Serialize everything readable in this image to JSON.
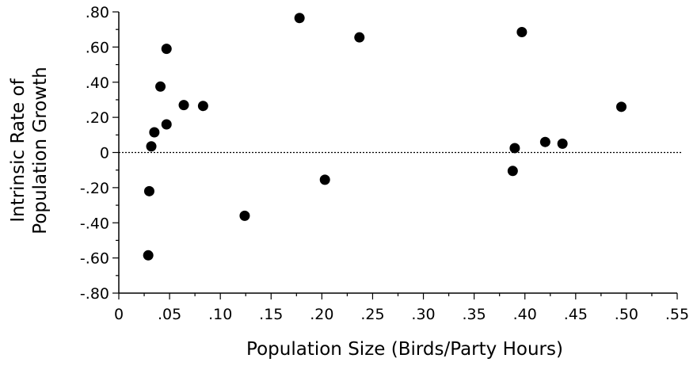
{
  "chart_data": {
    "type": "scatter",
    "title": "",
    "xlabel": "Population Size (Birds/Party Hours)",
    "ylabel_lines": [
      "Intrinsic Rate of",
      "Population Growth"
    ],
    "xlim": [
      0,
      0.55
    ],
    "ylim": [
      -0.8,
      0.8
    ],
    "x_ticks": [
      0,
      0.05,
      0.1,
      0.15,
      0.2,
      0.25,
      0.3,
      0.35,
      0.4,
      0.45,
      0.5,
      0.55
    ],
    "x_tick_labels": [
      "0",
      ".05",
      ".10",
      ".15",
      ".20",
      ".25",
      ".30",
      ".35",
      ".40",
      ".45",
      ".50",
      ".55"
    ],
    "y_ticks": [
      0.8,
      0.6,
      0.4,
      0.2,
      0,
      -0.2,
      -0.4,
      -0.6,
      -0.8
    ],
    "y_tick_labels": [
      ".80",
      ".60",
      ".40",
      ".20",
      "0",
      "-.20",
      "-.40",
      "-.60",
      "-.80"
    ],
    "grid": false,
    "reference_line": {
      "y": 0,
      "style": "dotted"
    },
    "points": [
      {
        "x": 0.029,
        "y": -0.585
      },
      {
        "x": 0.03,
        "y": -0.22
      },
      {
        "x": 0.032,
        "y": 0.035
      },
      {
        "x": 0.035,
        "y": 0.115
      },
      {
        "x": 0.041,
        "y": 0.375
      },
      {
        "x": 0.047,
        "y": 0.59
      },
      {
        "x": 0.047,
        "y": 0.16
      },
      {
        "x": 0.064,
        "y": 0.27
      },
      {
        "x": 0.083,
        "y": 0.265
      },
      {
        "x": 0.124,
        "y": -0.36
      },
      {
        "x": 0.178,
        "y": 0.765
      },
      {
        "x": 0.203,
        "y": -0.155
      },
      {
        "x": 0.237,
        "y": 0.655
      },
      {
        "x": 0.388,
        "y": -0.105
      },
      {
        "x": 0.39,
        "y": 0.025
      },
      {
        "x": 0.397,
        "y": 0.685
      },
      {
        "x": 0.42,
        "y": 0.06
      },
      {
        "x": 0.437,
        "y": 0.05
      },
      {
        "x": 0.495,
        "y": 0.26
      }
    ]
  }
}
